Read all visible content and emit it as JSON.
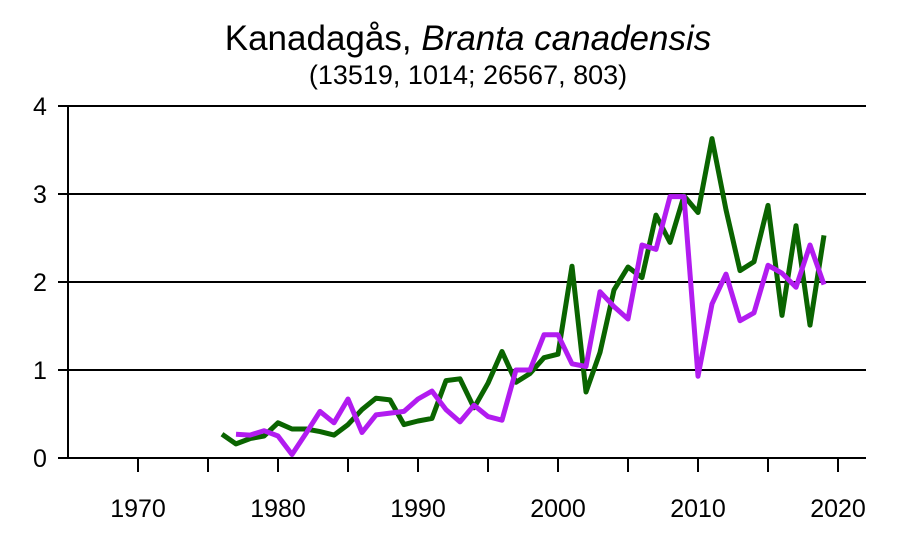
{
  "chart_data": {
    "type": "line",
    "title": "Kanadagås, ",
    "title_species": "Branta canadensis",
    "subtitle": "(13519, 1014; 26567, 803)",
    "xlim": [
      1965,
      2022
    ],
    "ylim": [
      0,
      4
    ],
    "x_ticks": [
      1970,
      1975,
      1980,
      1985,
      1990,
      1995,
      2000,
      2005,
      2010,
      2015,
      2020
    ],
    "x_tick_labels": [
      1970,
      1980,
      1990,
      2000,
      2010,
      2020
    ],
    "y_ticks": [
      0,
      1,
      2,
      3,
      4
    ],
    "grid": "horizontal",
    "series": [
      {
        "color": "#0a6400",
        "x": [
          1976,
          1977,
          1978,
          1979,
          1980,
          1981,
          1982,
          1983,
          1984,
          1985,
          1986,
          1987,
          1988,
          1989,
          1990,
          1991,
          1992,
          1993,
          1994,
          1995,
          1996,
          1997,
          1998,
          1999,
          2000,
          2001,
          2002,
          2003,
          2004,
          2005,
          2006,
          2007,
          2008,
          2009,
          2010,
          2011,
          2012,
          2013,
          2014,
          2015,
          2016,
          2017,
          2018,
          2019
        ],
        "y": [
          0.27,
          0.16,
          0.22,
          0.25,
          0.4,
          0.33,
          0.33,
          0.3,
          0.26,
          0.38,
          0.55,
          0.68,
          0.66,
          0.38,
          0.42,
          0.45,
          0.88,
          0.9,
          0.57,
          0.85,
          1.21,
          0.86,
          0.96,
          1.14,
          1.18,
          2.18,
          0.75,
          1.2,
          1.91,
          2.17,
          2.05,
          2.76,
          2.45,
          2.98,
          2.79,
          3.63,
          2.82,
          2.13,
          2.23,
          2.87,
          1.62,
          2.64,
          1.51,
          2.53
        ]
      },
      {
        "color": "#b21cf0",
        "x": [
          1977,
          1978,
          1979,
          1980,
          1981,
          1982,
          1983,
          1984,
          1985,
          1986,
          1987,
          1988,
          1989,
          1990,
          1991,
          1992,
          1993,
          1994,
          1995,
          1996,
          1997,
          1998,
          1999,
          2000,
          2001,
          2002,
          2003,
          2004,
          2005,
          2006,
          2007,
          2008,
          2009,
          2010,
          2011,
          2012,
          2013,
          2014,
          2015,
          2016,
          2017,
          2018,
          2019
        ],
        "y": [
          0.27,
          0.26,
          0.31,
          0.25,
          0.04,
          0.28,
          0.53,
          0.4,
          0.67,
          0.29,
          0.49,
          0.51,
          0.53,
          0.67,
          0.76,
          0.55,
          0.41,
          0.6,
          0.47,
          0.43,
          1.0,
          1.0,
          1.4,
          1.4,
          1.07,
          1.04,
          1.89,
          1.72,
          1.58,
          2.42,
          2.37,
          2.97,
          2.97,
          0.93,
          1.75,
          2.09,
          1.56,
          1.65,
          2.19,
          2.1,
          1.94,
          2.42,
          1.97
        ]
      }
    ]
  }
}
